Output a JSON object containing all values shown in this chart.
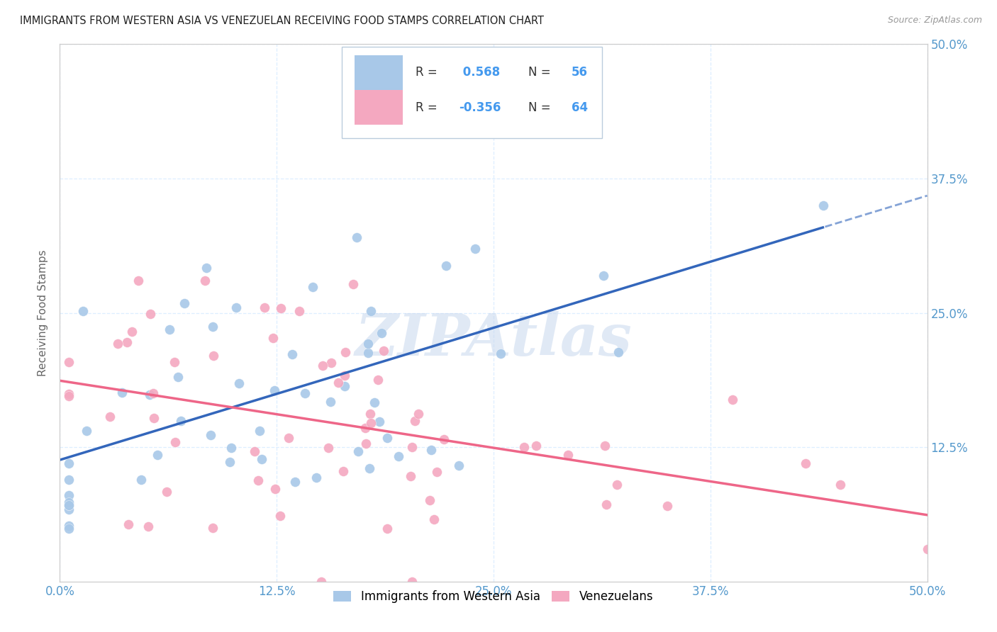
{
  "title": "IMMIGRANTS FROM WESTERN ASIA VS VENEZUELAN RECEIVING FOOD STAMPS CORRELATION CHART",
  "source": "Source: ZipAtlas.com",
  "ylabel": "Receiving Food Stamps",
  "xlim": [
    0.0,
    0.5
  ],
  "ylim": [
    0.0,
    0.5
  ],
  "xtick_positions": [
    0.0,
    0.125,
    0.25,
    0.375,
    0.5
  ],
  "ytick_positions": [
    0.125,
    0.25,
    0.375,
    0.5
  ],
  "blue_R": 0.568,
  "blue_N": 56,
  "pink_R": -0.356,
  "pink_N": 64,
  "blue_color": "#A8C8E8",
  "pink_color": "#F4A8C0",
  "blue_line_color": "#3366BB",
  "pink_line_color": "#EE6688",
  "legend_r_color": "#4499EE",
  "background_color": "#FFFFFF",
  "grid_color": "#DDEEFF",
  "watermark_color": "#C8D8EE",
  "title_color": "#222222",
  "axis_label_color": "#5599CC",
  "ylabel_color": "#666666"
}
